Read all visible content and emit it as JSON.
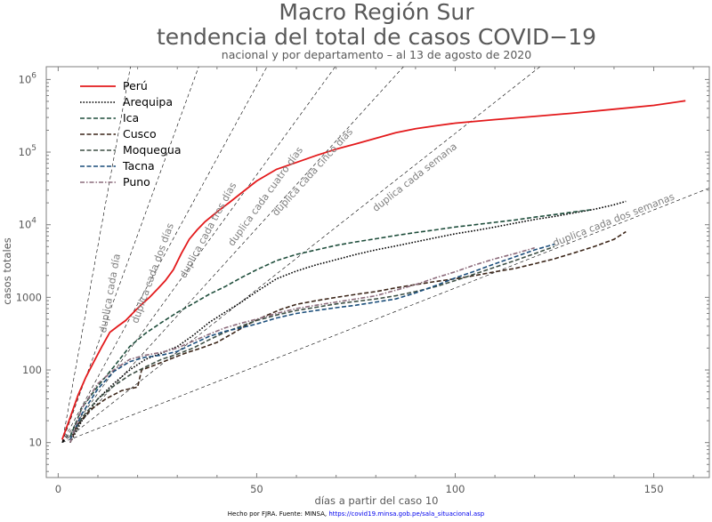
{
  "chart_data": {
    "type": "line",
    "title": "Macro Región Sur",
    "subtitle_line": "tendencia del total de casos COVID−19",
    "caption": "nacional y por departamento – al 13 de agosto de 2020",
    "xlabel": "días a partir del caso 10",
    "ylabel": "casos totales",
    "xlim": [
      -3,
      164
    ],
    "ylim": [
      3.3,
      1500000
    ],
    "yscale": "log",
    "grid": false,
    "legend_position": "top-left",
    "x_ticks": [
      {
        "value": 0,
        "label": "0"
      },
      {
        "value": 50,
        "label": "50"
      },
      {
        "value": 100,
        "label": "100"
      },
      {
        "value": 150,
        "label": "150"
      }
    ],
    "y_ticks": [
      {
        "value": 10,
        "label": "10"
      },
      {
        "value": 100,
        "label": "100"
      },
      {
        "value": 1000,
        "label": "1000"
      },
      {
        "value": 10000,
        "label": "10",
        "exp": "4"
      },
      {
        "value": 100000,
        "label": "10",
        "exp": "5"
      },
      {
        "value": 1000000,
        "label": "10",
        "exp": "6"
      }
    ],
    "series": [
      {
        "name": "Perú",
        "color": "#e31a1c",
        "dash": "solid",
        "x": [
          1,
          3,
          5,
          7,
          9,
          11,
          13,
          15,
          17,
          19,
          21,
          23,
          25,
          27,
          29,
          31,
          33,
          35,
          37,
          40,
          43,
          46,
          50,
          55,
          60,
          65,
          70,
          75,
          80,
          85,
          90,
          95,
          100,
          110,
          120,
          130,
          140,
          150,
          158
        ],
        "y": [
          11,
          22,
          45,
          80,
          130,
          210,
          330,
          400,
          480,
          620,
          800,
          1000,
          1300,
          1700,
          2400,
          4000,
          6300,
          8500,
          11000,
          15000,
          20000,
          27000,
          40000,
          58000,
          72000,
          90000,
          110000,
          130000,
          155000,
          185000,
          210000,
          230000,
          250000,
          280000,
          310000,
          345000,
          390000,
          440000,
          510000
        ]
      },
      {
        "name": "Arequipa",
        "color": "#000000",
        "dash": "dotted",
        "x": [
          3,
          6,
          10,
          14,
          18,
          22,
          26,
          30,
          34,
          38,
          42,
          46,
          50,
          55,
          60,
          65,
          70,
          75,
          80,
          85,
          90,
          95,
          100,
          105,
          110,
          115,
          120,
          125,
          130,
          135,
          140,
          143
        ],
        "y": [
          10,
          20,
          40,
          65,
          100,
          140,
          170,
          210,
          300,
          450,
          620,
          850,
          1200,
          1800,
          2300,
          2800,
          3300,
          3900,
          4500,
          5100,
          5800,
          6600,
          7500,
          8300,
          9300,
          10500,
          11800,
          13000,
          14600,
          16300,
          18800,
          21000
        ]
      },
      {
        "name": "Ica",
        "color": "#1e4d3b",
        "dash": "dashed",
        "x": [
          3,
          6,
          10,
          14,
          18,
          22,
          26,
          30,
          34,
          38,
          42,
          46,
          50,
          55,
          60,
          65,
          70,
          75,
          80,
          85,
          90,
          95,
          100,
          105,
          110,
          115,
          120,
          125,
          130,
          134
        ],
        "y": [
          12,
          30,
          60,
          110,
          210,
          320,
          450,
          620,
          820,
          1100,
          1400,
          1850,
          2400,
          3200,
          3900,
          4500,
          5200,
          5800,
          6400,
          7100,
          7800,
          8500,
          9300,
          10000,
          10800,
          11600,
          12700,
          13800,
          15000,
          16000
        ]
      },
      {
        "name": "Cusco",
        "color": "#3b2518",
        "dash": "dashed",
        "x": [
          3,
          5,
          8,
          12,
          16,
          20,
          21,
          24,
          28,
          32,
          36,
          40,
          44,
          48,
          52,
          56,
          60,
          65,
          70,
          75,
          80,
          85,
          90,
          95,
          100,
          105,
          110,
          115,
          120,
          125,
          130,
          135,
          140,
          143
        ],
        "y": [
          10,
          18,
          28,
          40,
          52,
          58,
          100,
          115,
          140,
          170,
          200,
          240,
          320,
          430,
          550,
          680,
          800,
          900,
          1000,
          1100,
          1200,
          1350,
          1500,
          1650,
          1800,
          2000,
          2250,
          2500,
          2900,
          3400,
          4100,
          5000,
          6300,
          8000
        ]
      },
      {
        "name": "Moquegua",
        "color": "#3d4f44",
        "dash": "dashed",
        "x": [
          3,
          6,
          10,
          14,
          18,
          22,
          26,
          30,
          34,
          38,
          42,
          46,
          50,
          55,
          60,
          65,
          70,
          75,
          80,
          85,
          90,
          95,
          100,
          105,
          110,
          115,
          120,
          125
        ],
        "y": [
          11,
          22,
          40,
          60,
          85,
          110,
          140,
          165,
          200,
          260,
          330,
          400,
          480,
          570,
          660,
          730,
          810,
          880,
          950,
          1050,
          1200,
          1400,
          1700,
          2100,
          2600,
          3200,
          4000,
          5000
        ]
      },
      {
        "name": "Tacna",
        "color": "#1a4d7a",
        "dash": "dashed",
        "x": [
          3,
          6,
          10,
          14,
          18,
          22,
          26,
          30,
          34,
          38,
          42,
          46,
          50,
          55,
          60,
          65,
          70,
          75,
          80,
          85,
          90,
          95,
          100,
          105,
          110,
          115,
          120,
          125
        ],
        "y": [
          11,
          25,
          55,
          95,
          130,
          150,
          160,
          180,
          230,
          290,
          340,
          380,
          430,
          520,
          600,
          660,
          720,
          780,
          860,
          950,
          1150,
          1450,
          1850,
          2300,
          2900,
          3600,
          4500,
          5400
        ]
      },
      {
        "name": "Puno",
        "color": "#8c6b7b",
        "dash": "dashdot",
        "x": [
          3,
          6,
          10,
          14,
          18,
          22,
          26,
          30,
          34,
          38,
          42,
          46,
          50,
          55,
          60,
          65,
          70,
          75,
          80,
          85,
          90,
          95,
          100,
          105,
          110,
          115,
          120
        ],
        "y": [
          10,
          30,
          65,
          100,
          140,
          160,
          175,
          200,
          250,
          310,
          380,
          440,
          500,
          600,
          700,
          780,
          860,
          950,
          1050,
          1250,
          1500,
          1850,
          2250,
          2800,
          3400,
          4000,
          4800
        ]
      }
    ],
    "doubling_guides": [
      {
        "label": "duplica cada día",
        "days": 1
      },
      {
        "label": "duplica cada dos días",
        "days": 2
      },
      {
        "label": "duplica cada tres días",
        "days": 3
      },
      {
        "label": "duplica cada cuatro días",
        "days": 4
      },
      {
        "label": "duplica cada cinco días",
        "days": 5
      },
      {
        "label": "duplica cada semana",
        "days": 7
      },
      {
        "label": "duplica cada dos semanas",
        "days": 14
      }
    ]
  },
  "footer": {
    "text": "Hecho por FJRA. Fuente: MINSA,",
    "link": "https://covid19.minsa.gob.pe/sala_situacional.asp"
  }
}
